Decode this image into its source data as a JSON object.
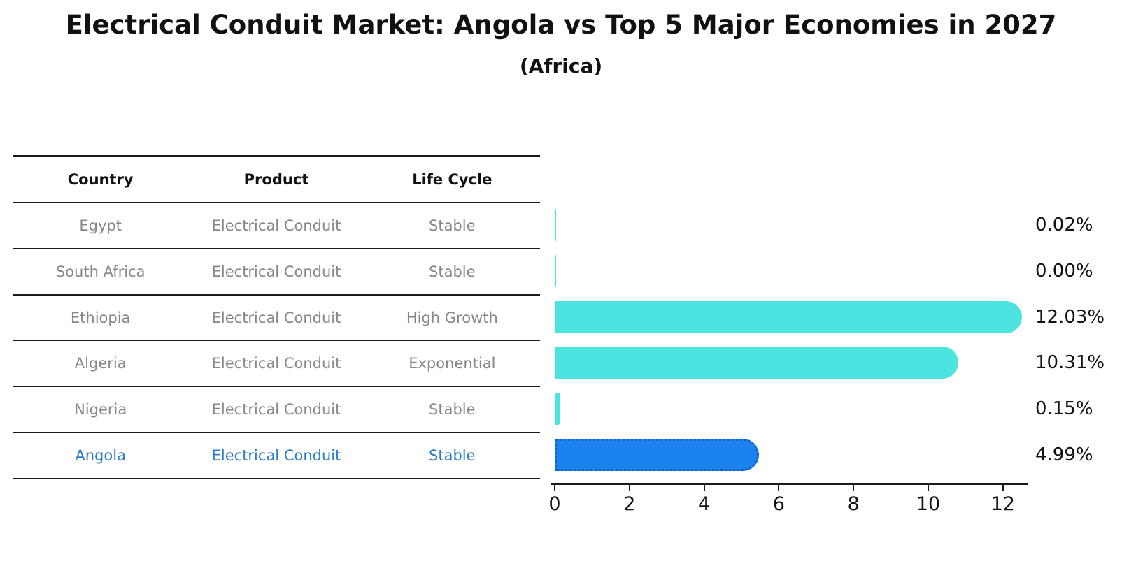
{
  "title": "Electrical Conduit Market: Angola vs Top 5 Major Economies in 2027",
  "subtitle": "(Africa)",
  "table": {
    "headers": [
      "Country",
      "Product",
      "Life Cycle"
    ],
    "rows": [
      {
        "country": "Egypt",
        "product": "Electrical Conduit",
        "life_cycle": "Stable",
        "highlight": false
      },
      {
        "country": "South Africa",
        "product": "Electrical Conduit",
        "life_cycle": "Stable",
        "highlight": false
      },
      {
        "country": "Ethiopia",
        "product": "Electrical Conduit",
        "life_cycle": "High Growth",
        "highlight": false
      },
      {
        "country": "Algeria",
        "product": "Electrical Conduit",
        "life_cycle": "Exponential",
        "highlight": false
      },
      {
        "country": "Nigeria",
        "product": "Electrical Conduit",
        "life_cycle": "Stable",
        "highlight": false
      },
      {
        "country": "Angola",
        "product": "Electrical Conduit",
        "life_cycle": "Stable",
        "highlight": true
      }
    ]
  },
  "chart_data": {
    "type": "bar",
    "orientation": "horizontal",
    "title": "Electrical Conduit Market: Angola vs Top 5 Major Economies in 2027",
    "subtitle": "(Africa)",
    "categories": [
      "Egypt",
      "South Africa",
      "Ethiopia",
      "Algeria",
      "Nigeria",
      "Angola"
    ],
    "values": [
      0.02,
      0.0,
      12.03,
      10.31,
      0.15,
      4.99
    ],
    "value_labels": [
      "0.02%",
      "0.00%",
      "12.03%",
      "10.31%",
      "0.15%",
      "4.99%"
    ],
    "x_ticks": [
      0,
      2,
      4,
      6,
      8,
      10,
      12
    ],
    "xlim": [
      0,
      12.6
    ],
    "grid": false,
    "legend": "none",
    "highlight_category": "Angola",
    "colors": {
      "bar": "#4be4e0",
      "highlight_bar": "#1c82ee",
      "highlight_border": "#0d5fd0",
      "row_text": "#878787",
      "highlight_text": "#2a7cc7",
      "axis": "#1a1a1a"
    }
  }
}
